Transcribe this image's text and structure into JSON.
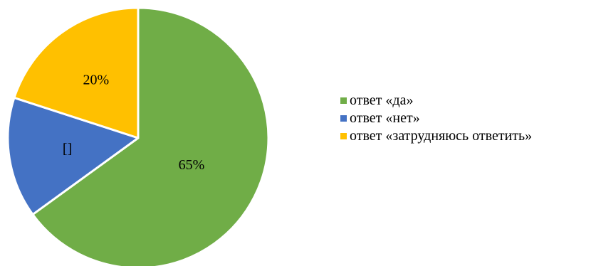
{
  "chart_data": {
    "type": "pie",
    "slices": [
      {
        "label": "ответ «да»",
        "value": 65,
        "data_label": "65%",
        "color": "#70AD47"
      },
      {
        "label": "ответ «нет»",
        "value": 15,
        "data_label": "[]",
        "color": "#4472C4"
      },
      {
        "label": "ответ «затрудняюсь ответить»",
        "value": 20,
        "data_label": "20%",
        "color": "#FFC000"
      }
    ],
    "legend_position": "right"
  }
}
